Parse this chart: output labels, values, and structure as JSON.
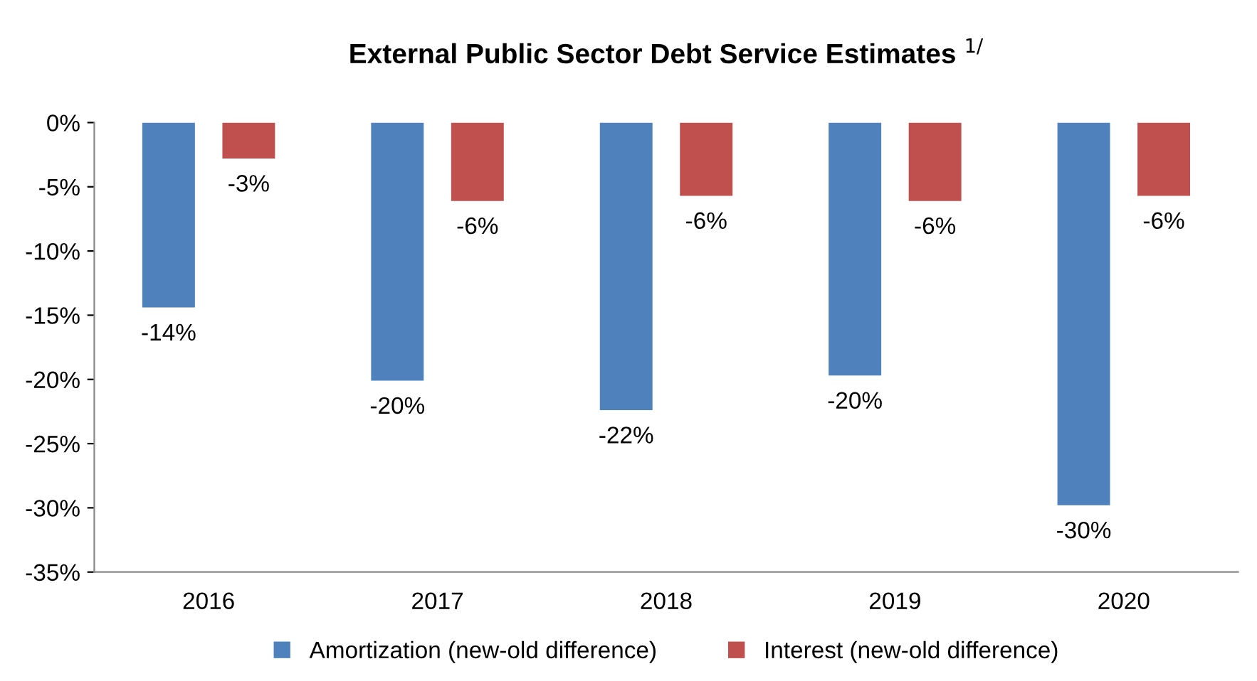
{
  "chart_data": {
    "type": "bar",
    "title": "External Public Sector Debt Service Estimates $^{1/}$",
    "categories": [
      "2016",
      "2017",
      "2018",
      "2019",
      "2020"
    ],
    "series": [
      {
        "name": "Amortization (new-old difference)",
        "color": "#4f81bd",
        "values": [
          -14.4,
          -20.1,
          -22.4,
          -19.7,
          -29.8
        ],
        "value_labels": [
          "-14%",
          "-20%",
          "-22%",
          "-20%",
          "-30%"
        ]
      },
      {
        "name": "Interest (new-old difference)",
        "color": "#c0504d",
        "values": [
          -2.8,
          -6.1,
          -5.7,
          -6.1,
          -5.7
        ],
        "value_labels": [
          "-3%",
          "-6%",
          "-6%",
          "-6%",
          "-6%"
        ]
      }
    ],
    "ylim": [
      -35,
      0
    ],
    "yticks": [
      {
        "value": 0,
        "label": "0%"
      },
      {
        "value": -5,
        "label": "-5%"
      },
      {
        "value": -10,
        "label": "-10%"
      },
      {
        "value": -15,
        "label": "-15%"
      },
      {
        "value": -20,
        "label": "-20%"
      },
      {
        "value": -25,
        "label": "-25%"
      },
      {
        "value": -30,
        "label": "-30%"
      },
      {
        "value": -35,
        "label": "-35%"
      }
    ],
    "grid": false,
    "legend": "bottom"
  }
}
